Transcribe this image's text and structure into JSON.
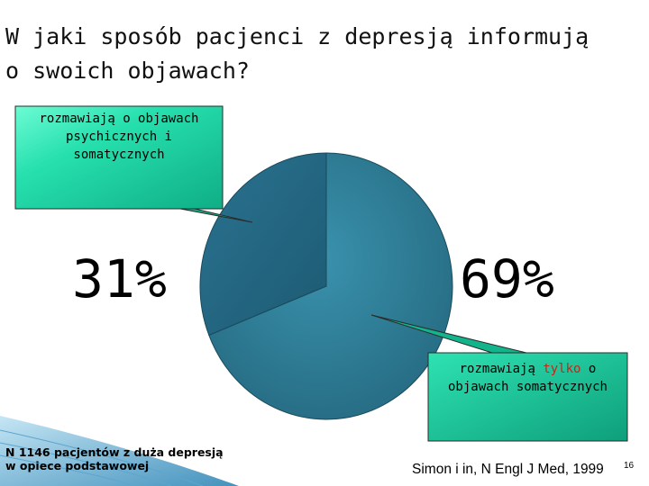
{
  "slide": {
    "title_line1": "W jaki sposób pacjenci z depresją informują",
    "title_line2": "o swoich objawach?",
    "footnote_line1": "N 1146 pacjentów z duża depresją",
    "footnote_line2": "w opiece podstawowej",
    "citation": "Simon i in, N Engl J Med, 1999",
    "page_number": "16"
  },
  "chart_data": {
    "type": "pie",
    "slices": [
      {
        "label": "rozmawiają o objawach psychicznych i somatycznych",
        "value": 31,
        "display": "31%",
        "color": "#2a6f8c"
      },
      {
        "label": "rozmawiają tylko o objawach somatycznych",
        "value": 69,
        "display": "69%",
        "color": "#2f7f98"
      }
    ],
    "callouts": {
      "top": {
        "line1": "rozmawiają o objawach",
        "line2": "psychicznych i",
        "line3": "somatycznych"
      },
      "bottom": {
        "prefix": "rozmawiają ",
        "emphasis": "tylko",
        "suffix": " o",
        "line2": "objawach somatycznych"
      }
    },
    "colors": {
      "callout_fill": "#13c79b",
      "callout_highlight": "#6dfcd4",
      "emphasis_text": "#c0281c"
    }
  }
}
